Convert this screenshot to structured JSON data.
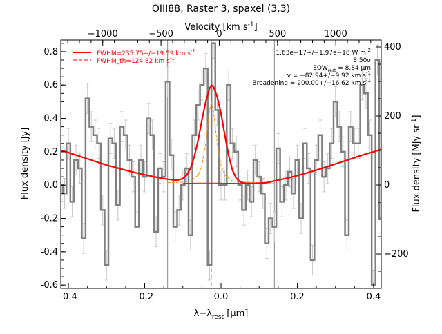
{
  "chart_data": {
    "type": "line",
    "title": "OIII88, Raster 3, spaxel (3,3)",
    "xlabel": "λ−λ",
    "xlabel_sub": "rest",
    "xlabel_unit": " [μm]",
    "ylabel": "Flux density [Jy]",
    "top_axis_label": "Velocity [km s",
    "top_axis_label_sup": "-1",
    "top_axis_label_end": "]",
    "right_axis_label": "Flux density [MJy sr",
    "right_axis_label_sup": "-1",
    "right_axis_label_end": "]",
    "xlim": [
      -0.42,
      0.42
    ],
    "ylim": [
      -0.62,
      0.87
    ],
    "top_xlim": [
      -1360,
      1390
    ],
    "right_ylim": [
      -300,
      420
    ],
    "x_ticks": [
      -0.4,
      -0.2,
      0.0,
      0.2,
      0.4
    ],
    "x_tick_labels": [
      "-0.4",
      "-0.2",
      "0.0",
      "0.2",
      "0.4"
    ],
    "y_ticks": [
      -0.6,
      -0.4,
      -0.2,
      0.0,
      0.2,
      0.4,
      0.6,
      0.8
    ],
    "y_tick_labels": [
      "-0.6",
      "-0.4",
      "-0.2",
      "0.0",
      "0.2",
      "0.4",
      "0.6",
      "0.8"
    ],
    "top_ticks": [
      -1000,
      -500,
      0,
      500,
      1000
    ],
    "top_tick_labels": [
      "−1000",
      "−500",
      "0",
      "500",
      "1000"
    ],
    "right_ticks": [
      -200,
      0,
      200,
      400
    ],
    "right_tick_labels": [
      "−200",
      "0",
      "200",
      "400"
    ],
    "vertical_lines": [
      -0.14,
      0.14
    ],
    "line_center": -0.025,
    "legend": {
      "placement": "top-left",
      "entries": [
        {
          "label": "FWHM=235.75+/−19.59 km s",
          "sup": "-1",
          "color": "#ff0000",
          "style": "solid"
        },
        {
          "label": "FWHM_th=124.82 km s",
          "sup": "-1",
          "color": "#ff0000",
          "style": "dashed"
        }
      ]
    },
    "annotations": [
      {
        "text": "1.63e−17+/−1.97e−18 W m",
        "sup": "-2"
      },
      {
        "text": "8.50σ"
      },
      {
        "text": "EQW",
        "sub": "rest",
        "text2": " = 8.84 μm"
      },
      {
        "text": "v = −82.94+/−9.92 km s",
        "sup": "-1"
      },
      {
        "text": "Broadening = 200.00+/−16.62 km s",
        "sup": "-1"
      }
    ],
    "colors": {
      "data": "#808080",
      "fit": "#ff0000",
      "thermal": "#ff8c00",
      "center": "#aaaaaa"
    },
    "spectrum": {
      "name": "data",
      "x": [
        -0.42,
        -0.41,
        -0.4,
        -0.39,
        -0.38,
        -0.37,
        -0.36,
        -0.35,
        -0.34,
        -0.33,
        -0.32,
        -0.31,
        -0.3,
        -0.29,
        -0.28,
        -0.27,
        -0.26,
        -0.25,
        -0.24,
        -0.23,
        -0.22,
        -0.21,
        -0.2,
        -0.19,
        -0.18,
        -0.17,
        -0.16,
        -0.15,
        -0.14,
        -0.13,
        -0.12,
        -0.11,
        -0.1,
        -0.09,
        -0.08,
        -0.07,
        -0.06,
        -0.05,
        -0.04,
        -0.03,
        -0.02,
        -0.01,
        0.0,
        0.01,
        0.02,
        0.03,
        0.04,
        0.05,
        0.06,
        0.07,
        0.08,
        0.09,
        0.1,
        0.11,
        0.12,
        0.13,
        0.14,
        0.15,
        0.16,
        0.17,
        0.18,
        0.19,
        0.2,
        0.21,
        0.22,
        0.23,
        0.24,
        0.25,
        0.26,
        0.27,
        0.28,
        0.29,
        0.3,
        0.31,
        0.32,
        0.33,
        0.34,
        0.35,
        0.36,
        0.37,
        0.38,
        0.39,
        0.4,
        0.41,
        0.42
      ],
      "y": [
        0.0,
        -0.05,
        0.25,
        -0.1,
        0.15,
        0.1,
        -0.32,
        0.52,
        0.35,
        0.3,
        0.25,
        -0.15,
        -0.48,
        0.28,
        0.25,
        -0.12,
        0.35,
        0.3,
        0.15,
        0.05,
        -0.25,
        0.15,
        0.05,
        0.4,
        0.3,
        -0.28,
        0.1,
        0.05,
        0.62,
        0.18,
        -0.25,
        -0.15,
        0.0,
        0.1,
        -0.3,
        0.3,
        0.48,
        0.6,
        0.7,
        -0.48,
        0.85,
        0.45,
        0.0,
        0.0,
        0.6,
        0.25,
        0.2,
        0.0,
        -0.15,
        0.0,
        -0.1,
        0.15,
        0.05,
        -0.05,
        -0.35,
        -0.2,
        -0.25,
        0.22,
        -0.1,
        0.0,
        0.08,
        -0.05,
        0.15,
        -0.2,
        0.25,
        0.1,
        -0.45,
        0.15,
        0.3,
        0.05,
        0.1,
        0.25,
        0.5,
        0.35,
        0.2,
        -0.3,
        0.35,
        0.25,
        0.25,
        0.6,
        0.55,
        0.3,
        -0.6,
        0.75,
        -0.2
      ],
      "errors": [
        0.09,
        0.09,
        0.09,
        0.09,
        0.09,
        0.09,
        0.09,
        0.09,
        0.09,
        0.09,
        0.09,
        0.09,
        0.09,
        0.09,
        0.09,
        0.09,
        0.09,
        0.09,
        0.09,
        0.09,
        0.09,
        0.09,
        0.09,
        0.09,
        0.09,
        0.09,
        0.09,
        0.09,
        0.09,
        0.09,
        0.09,
        0.09,
        0.09,
        0.09,
        0.09,
        0.09,
        0.09,
        0.09,
        0.09,
        0.09,
        0.09,
        0.09,
        0.09,
        0.09,
        0.09,
        0.09,
        0.09,
        0.09,
        0.09,
        0.09,
        0.09,
        0.09,
        0.09,
        0.09,
        0.09,
        0.09,
        0.09,
        0.09,
        0.09,
        0.09,
        0.09,
        0.09,
        0.09,
        0.09,
        0.09,
        0.09,
        0.09,
        0.09,
        0.09,
        0.09,
        0.09,
        0.09,
        0.09,
        0.09,
        0.09,
        0.09,
        0.09,
        0.09,
        0.09,
        0.09,
        0.09,
        0.09,
        0.09,
        0.09,
        0.09
      ]
    },
    "fit": {
      "name": "fit",
      "x": [
        -0.42,
        -0.4,
        -0.38,
        -0.36,
        -0.34,
        -0.32,
        -0.3,
        -0.28,
        -0.26,
        -0.24,
        -0.22,
        -0.2,
        -0.18,
        -0.16,
        -0.14,
        -0.12,
        -0.11,
        -0.1,
        -0.09,
        -0.08,
        -0.07,
        -0.06,
        -0.05,
        -0.04,
        -0.03,
        -0.025,
        -0.02,
        -0.01,
        0.0,
        0.01,
        0.02,
        0.03,
        0.04,
        0.05,
        0.06,
        0.08,
        0.1,
        0.12,
        0.14,
        0.16,
        0.18,
        0.2,
        0.22,
        0.24,
        0.26,
        0.28,
        0.3,
        0.32,
        0.34,
        0.36,
        0.38,
        0.4,
        0.42
      ],
      "y": [
        0.21,
        0.195,
        0.18,
        0.165,
        0.15,
        0.135,
        0.12,
        0.108,
        0.095,
        0.083,
        0.072,
        0.062,
        0.052,
        0.043,
        0.035,
        0.03,
        0.032,
        0.04,
        0.06,
        0.1,
        0.17,
        0.27,
        0.39,
        0.5,
        0.58,
        0.6,
        0.59,
        0.53,
        0.43,
        0.3,
        0.18,
        0.09,
        0.04,
        0.02,
        0.012,
        0.01,
        0.011,
        0.015,
        0.025,
        0.035,
        0.045,
        0.057,
        0.07,
        0.083,
        0.097,
        0.112,
        0.127,
        0.142,
        0.157,
        0.172,
        0.187,
        0.2,
        0.215
      ]
    },
    "thermal": {
      "name": "thermal",
      "x": [
        -0.14,
        -0.1,
        -0.08,
        -0.06,
        -0.05,
        -0.04,
        -0.035,
        -0.03,
        -0.025,
        -0.02,
        -0.015,
        -0.01,
        0.0,
        0.01,
        0.03,
        0.06,
        0.1,
        0.14
      ],
      "y": [
        0.015,
        0.018,
        0.025,
        0.06,
        0.12,
        0.25,
        0.35,
        0.45,
        0.5,
        0.45,
        0.35,
        0.25,
        0.12,
        0.06,
        0.025,
        0.018,
        0.015,
        0.012
      ]
    },
    "baseline": {
      "name": "baseline",
      "x": [
        -0.1,
        -0.06,
        -0.02,
        0.02,
        0.06
      ],
      "y": [
        0.01,
        0.012,
        0.012,
        0.011,
        0.01
      ]
    }
  }
}
